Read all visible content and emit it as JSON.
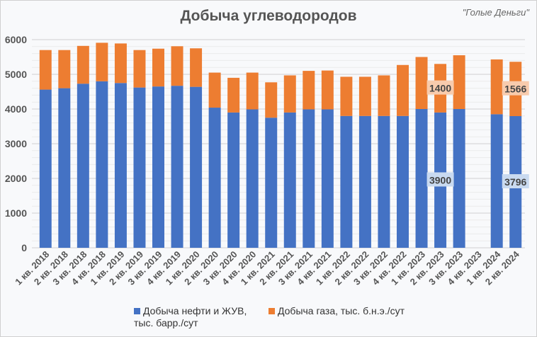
{
  "chart_data": {
    "type": "bar",
    "stacked": true,
    "title": "Добыча углеводородов",
    "watermark": "\"Голые Деньги\"",
    "categories": [
      "1 кв. 2018",
      "2 кв. 2018",
      "3 кв. 2018",
      "4 кв. 2018",
      "1 кв. 2019",
      "2 кв. 2019",
      "3 кв. 2019",
      "4 кв. 2019",
      "1 кв. 2020",
      "2 кв. 2020",
      "3 кв. 2020",
      "4 кв. 2020",
      "1 кв. 2021",
      "2 кв. 2021",
      "3 кв. 2021",
      "4 кв. 2021",
      "1 кв. 2022",
      "2 кв. 2022",
      "3 кв. 2022",
      "4 кв. 2022",
      "1 кв. 2023",
      "2 кв. 2023",
      "3 кв. 2023",
      "4 кв. 2023",
      "1 кв. 2024",
      "2 кв. 2024"
    ],
    "series": [
      {
        "name": "Добыча нефти и ЖУВ, тыс. барр./сут",
        "color": "#4472c4",
        "values": [
          4560,
          4600,
          4730,
          4800,
          4750,
          4620,
          4650,
          4670,
          4640,
          4040,
          3900,
          3990,
          3750,
          3900,
          3990,
          3990,
          3800,
          3800,
          3800,
          3800,
          4000,
          3900,
          4000,
          null,
          3850,
          3796
        ]
      },
      {
        "name": "Добыча газа, тыс. б.н.э./сут",
        "color": "#ed7d31",
        "values": [
          1140,
          1100,
          1090,
          1110,
          1140,
          1080,
          1090,
          1140,
          1110,
          1010,
          1000,
          1060,
          1020,
          1070,
          1110,
          1120,
          1130,
          1130,
          1170,
          1470,
          1500,
          1400,
          1550,
          null,
          1580,
          1566
        ]
      }
    ],
    "data_labels": [
      {
        "series": 0,
        "index": 21,
        "text": "3900"
      },
      {
        "series": 1,
        "index": 21,
        "text": "1400"
      },
      {
        "series": 0,
        "index": 25,
        "text": "3796"
      },
      {
        "series": 1,
        "index": 25,
        "text": "1566"
      }
    ],
    "yticks": [
      "0",
      "1000",
      "2000",
      "3000",
      "4000",
      "5000",
      "6000"
    ],
    "ylim": [
      0,
      6000
    ],
    "grid": true,
    "legend": "bottom"
  }
}
